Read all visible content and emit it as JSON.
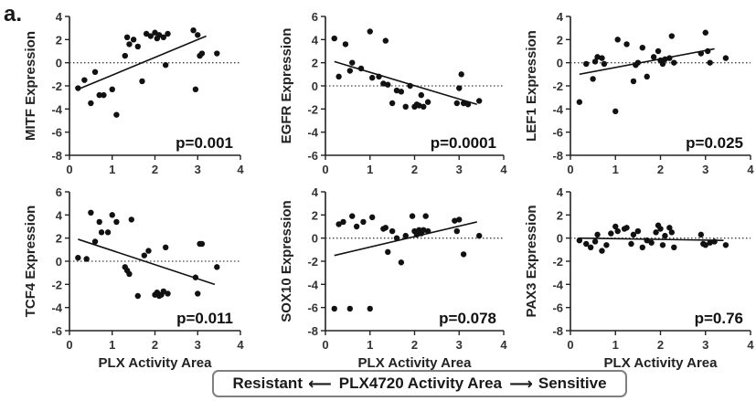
{
  "figure": {
    "panel_letter": "a.",
    "footer": {
      "left_label": "Resistant",
      "left_arrow": "⟵",
      "center_label": "PLX4720 Activity Area",
      "right_arrow": "⟶",
      "right_label": "Sensitive"
    }
  },
  "chart_data": [
    {
      "type": "scatter",
      "ylabel": "MITF Expression",
      "xlabel": "",
      "xlim": [
        0,
        4
      ],
      "ylim": [
        -8,
        4
      ],
      "xticks": [
        "0",
        "1",
        "2",
        "3",
        "4"
      ],
      "yticks": [
        "4",
        "2",
        "0",
        "-2",
        "-4",
        "-6",
        "-8"
      ],
      "yticks_values": [
        4,
        2,
        0,
        -2,
        -4,
        -6,
        -8
      ],
      "annotation": "p=0.001",
      "reference_line_y": 0,
      "fit": {
        "x": [
          0.2,
          3.2
        ],
        "y": [
          -2.3,
          2.3
        ]
      },
      "x": [
        0.2,
        0.35,
        0.5,
        0.6,
        0.7,
        0.8,
        1.0,
        1.1,
        1.3,
        1.35,
        1.4,
        1.5,
        1.6,
        1.7,
        1.8,
        1.9,
        2.0,
        2.05,
        2.1,
        2.2,
        2.25,
        2.3,
        2.9,
        2.95,
        3.0,
        3.05,
        3.1,
        3.45
      ],
      "y": [
        -2.2,
        -1.5,
        -3.5,
        -0.8,
        -2.8,
        -2.8,
        -2.3,
        -4.5,
        0.6,
        2.2,
        1.6,
        2.0,
        1.4,
        -1.6,
        2.5,
        2.3,
        2.6,
        2.1,
        2.4,
        2.2,
        -0.2,
        2.5,
        2.8,
        -2.3,
        2.4,
        0.6,
        0.8,
        0.8
      ]
    },
    {
      "type": "scatter",
      "ylabel": "EGFR Expression",
      "xlabel": "",
      "xlim": [
        0,
        4
      ],
      "ylim": [
        -6,
        6
      ],
      "xticks": [
        "0",
        "1",
        "2",
        "3",
        "4"
      ],
      "yticks": [
        "6",
        "4",
        "2",
        "0",
        "-2",
        "-4",
        "-6"
      ],
      "yticks_values": [
        6,
        4,
        2,
        0,
        -2,
        -4,
        -6
      ],
      "annotation": "p=0.0001",
      "reference_line_y": 0,
      "fit": {
        "x": [
          0.2,
          3.4
        ],
        "y": [
          2.1,
          -1.6
        ]
      },
      "x": [
        0.2,
        0.3,
        0.45,
        0.55,
        0.6,
        0.8,
        1.0,
        1.05,
        1.2,
        1.3,
        1.35,
        1.4,
        1.5,
        1.6,
        1.7,
        1.8,
        1.9,
        2.0,
        2.05,
        2.1,
        2.15,
        2.2,
        2.3,
        2.95,
        3.0,
        3.05,
        3.1,
        3.2,
        3.45
      ],
      "y": [
        4.1,
        0.8,
        3.6,
        1.3,
        2.0,
        1.5,
        4.7,
        0.7,
        0.8,
        0.2,
        3.9,
        0.1,
        -1.5,
        -0.4,
        -0.5,
        -1.8,
        0.0,
        -1.8,
        -1.6,
        -1.7,
        -0.8,
        -1.8,
        -1.4,
        -1.5,
        -0.2,
        1.0,
        -1.5,
        -1.6,
        -1.3
      ]
    },
    {
      "type": "scatter",
      "ylabel": "LEF1 Expression",
      "xlabel": "",
      "xlim": [
        0,
        4
      ],
      "ylim": [
        -8,
        4
      ],
      "xticks": [
        "0",
        "1",
        "2",
        "3",
        "4"
      ],
      "yticks": [
        "4",
        "2",
        "0",
        "-2",
        "-4",
        "-6",
        "-8"
      ],
      "yticks_values": [
        4,
        2,
        0,
        -2,
        -4,
        -6,
        -8
      ],
      "annotation": "p=0.025",
      "reference_line_y": 0,
      "fit": {
        "x": [
          0.2,
          3.2
        ],
        "y": [
          -1.0,
          1.2
        ]
      },
      "x": [
        0.2,
        0.35,
        0.5,
        0.55,
        0.6,
        0.7,
        0.75,
        1.0,
        1.05,
        1.25,
        1.4,
        1.45,
        1.5,
        1.6,
        1.7,
        1.85,
        1.95,
        2.0,
        2.05,
        2.1,
        2.2,
        2.25,
        2.3,
        2.9,
        3.0,
        3.05,
        3.1,
        3.45
      ],
      "y": [
        -3.4,
        -0.1,
        -1.4,
        0.1,
        0.5,
        0.4,
        -0.1,
        -4.2,
        2.0,
        1.6,
        -1.6,
        -0.2,
        0.0,
        1.3,
        -1.2,
        0.5,
        1.0,
        0.2,
        -0.1,
        0.3,
        0.4,
        2.3,
        0.0,
        0.8,
        2.6,
        1.0,
        0.0,
        0.4
      ]
    },
    {
      "type": "scatter",
      "ylabel": "TCF4 Expression",
      "xlabel": "PLX Activity Area",
      "xlim": [
        0,
        4
      ],
      "ylim": [
        -6,
        6
      ],
      "xticks": [
        "0",
        "1",
        "2",
        "3",
        "4"
      ],
      "yticks": [
        "6",
        "4",
        "2",
        "0",
        "-2",
        "-4",
        "-6"
      ],
      "yticks_values": [
        6,
        4,
        2,
        0,
        -2,
        -4,
        -6
      ],
      "annotation": "p=0.011",
      "reference_line_y": 0,
      "fit": {
        "x": [
          0.2,
          3.4
        ],
        "y": [
          1.9,
          -2.0
        ]
      },
      "x": [
        0.2,
        0.4,
        0.5,
        0.6,
        0.7,
        0.75,
        0.9,
        1.0,
        1.1,
        1.3,
        1.35,
        1.4,
        1.45,
        1.6,
        1.75,
        1.85,
        2.0,
        2.05,
        2.1,
        2.15,
        2.2,
        2.25,
        2.3,
        2.95,
        3.0,
        3.05,
        3.1,
        3.45
      ],
      "y": [
        0.3,
        0.2,
        4.2,
        1.7,
        3.4,
        2.5,
        2.5,
        4.0,
        3.4,
        -0.5,
        -0.8,
        -1.1,
        3.6,
        -3.0,
        0.5,
        0.9,
        -2.9,
        -2.7,
        -3.0,
        -2.9,
        -2.6,
        1.2,
        -2.8,
        -1.4,
        -2.8,
        1.5,
        1.5,
        -0.5
      ]
    },
    {
      "type": "scatter",
      "ylabel": "SOX10 Expression",
      "xlabel": "PLX Activity Area",
      "xlim": [
        0,
        4
      ],
      "ylim": [
        -8,
        4
      ],
      "xticks": [
        "0",
        "1",
        "2",
        "3",
        "4"
      ],
      "yticks": [
        "4",
        "2",
        "0",
        "-2",
        "-4",
        "-6",
        "-8"
      ],
      "yticks_values": [
        4,
        2,
        0,
        -2,
        -4,
        -6,
        -8
      ],
      "annotation": "p=0.078",
      "reference_line_y": 0,
      "fit": {
        "x": [
          0.2,
          3.4
        ],
        "y": [
          -1.5,
          1.4
        ]
      },
      "x": [
        0.2,
        0.3,
        0.4,
        0.55,
        0.6,
        0.7,
        0.85,
        1.0,
        1.05,
        1.3,
        1.35,
        1.4,
        1.5,
        1.6,
        1.7,
        1.8,
        1.95,
        2.0,
        2.05,
        2.1,
        2.15,
        2.2,
        2.25,
        2.3,
        2.9,
        2.95,
        3.0,
        3.1,
        3.45
      ],
      "y": [
        -6.1,
        1.2,
        1.4,
        -6.1,
        1.9,
        1.0,
        1.4,
        -6.1,
        1.8,
        0.8,
        0.9,
        -1.2,
        0.6,
        0.0,
        -2.1,
        0.2,
        1.9,
        0.6,
        0.3,
        0.7,
        0.4,
        0.7,
        1.9,
        0.6,
        1.5,
        0.6,
        1.6,
        -1.4,
        0.2
      ]
    },
    {
      "type": "scatter",
      "ylabel": "PAX3 Expression",
      "xlabel": "PLX Activity Area",
      "xlim": [
        0,
        4
      ],
      "ylim": [
        -8,
        4
      ],
      "xticks": [
        "0",
        "1",
        "2",
        "3",
        "4"
      ],
      "yticks": [
        "4",
        "2",
        "0",
        "-2",
        "-4",
        "-6",
        "-8"
      ],
      "yticks_values": [
        4,
        2,
        0,
        -2,
        -4,
        -6,
        -8
      ],
      "annotation": "p=0.76",
      "reference_line_y": 0,
      "fit": {
        "x": [
          0.2,
          3.4
        ],
        "y": [
          0.0,
          -0.2
        ]
      },
      "x": [
        0.2,
        0.35,
        0.45,
        0.55,
        0.6,
        0.7,
        0.8,
        0.9,
        1.0,
        1.05,
        1.2,
        1.25,
        1.35,
        1.4,
        1.5,
        1.6,
        1.7,
        1.8,
        1.9,
        1.95,
        2.0,
        2.05,
        2.1,
        2.2,
        2.25,
        2.3,
        2.9,
        2.95,
        3.0,
        3.1,
        3.2,
        3.45
      ],
      "y": [
        -0.2,
        -0.5,
        -0.8,
        -0.3,
        0.3,
        -1.1,
        -0.6,
        0.4,
        1.0,
        0.6,
        0.8,
        0.9,
        -0.5,
        0.3,
        0.6,
        -0.8,
        -0.2,
        -0.4,
        0.5,
        1.1,
        0.8,
        -0.6,
        0.2,
        0.9,
        0.5,
        -0.8,
        0.3,
        -0.5,
        -0.6,
        -0.4,
        -0.3,
        -0.6
      ]
    }
  ]
}
